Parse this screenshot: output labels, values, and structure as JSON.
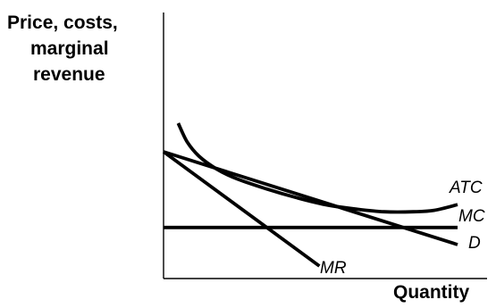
{
  "chart_data": {
    "type": "line",
    "title": "",
    "ylabel_lines": [
      "Price, costs,",
      "marginal",
      "revenue"
    ],
    "xlabel": "Quantity",
    "xlim": [
      0,
      100
    ],
    "ylim": [
      0,
      100
    ],
    "grid": false,
    "series": [
      {
        "name": "ATC",
        "x": [
          5,
          8,
          12,
          18,
          25,
          35,
          45,
          55,
          65,
          75,
          85,
          92,
          100
        ],
        "y": [
          95,
          82,
          72,
          63,
          56,
          49,
          43,
          38,
          35,
          33,
          33,
          34,
          38
        ]
      },
      {
        "name": "MC",
        "x": [
          0,
          100
        ],
        "y": [
          22,
          22
        ]
      },
      {
        "name": "D",
        "x": [
          0,
          100
        ],
        "y": [
          75,
          10
        ]
      },
      {
        "name": "MR",
        "x": [
          0,
          53
        ],
        "y": [
          75,
          -5
        ]
      }
    ]
  }
}
